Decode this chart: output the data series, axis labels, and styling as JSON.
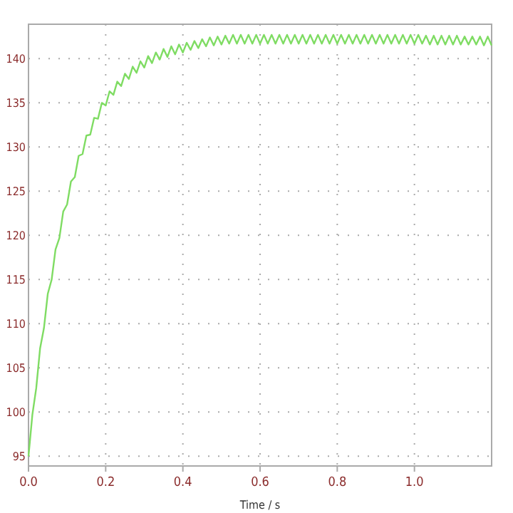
{
  "chart_data": {
    "type": "line",
    "xlabel": "Time / s",
    "xlim": [
      0,
      1.2
    ],
    "ylim": [
      93.9,
      143.9
    ],
    "xticks": [
      {
        "value": 0,
        "label": "0.0"
      },
      {
        "value": 0.2,
        "label": "0.2"
      },
      {
        "value": 0.4,
        "label": "0.4"
      },
      {
        "value": 0.6,
        "label": "0.6"
      },
      {
        "value": 0.8,
        "label": "0.8"
      },
      {
        "value": 1,
        "label": "1.0"
      }
    ],
    "yticks": [
      95,
      100,
      105,
      110,
      115,
      120,
      125,
      130,
      135,
      140
    ],
    "grid": true,
    "marker": "none",
    "line_style": "solid",
    "series": [
      {
        "color": "#7fdc63",
        "x": [
          0,
          0.01,
          0.02,
          0.03,
          0.04,
          0.05,
          0.06,
          0.07,
          0.08,
          0.09,
          0.1,
          0.11,
          0.12,
          0.13,
          0.14,
          0.15,
          0.16,
          0.17,
          0.18,
          0.19,
          0.2,
          0.21,
          0.22,
          0.23,
          0.24,
          0.25,
          0.26,
          0.27,
          0.28,
          0.29,
          0.3,
          0.31,
          0.32,
          0.33,
          0.34,
          0.35,
          0.36,
          0.37,
          0.38,
          0.39,
          0.4,
          0.41,
          0.42,
          0.43,
          0.44,
          0.45,
          0.46,
          0.47,
          0.48,
          0.49,
          0.5,
          0.51,
          0.52,
          0.53,
          0.54,
          0.55,
          0.56,
          0.57,
          0.58,
          0.59,
          0.6,
          0.61,
          0.62,
          0.63,
          0.64,
          0.65,
          0.66,
          0.67,
          0.68,
          0.69,
          0.7,
          0.71,
          0.72,
          0.73,
          0.74,
          0.75,
          0.76,
          0.77,
          0.78,
          0.79,
          0.8,
          0.81,
          0.82,
          0.83,
          0.84,
          0.85,
          0.86,
          0.87,
          0.88,
          0.89,
          0.9,
          0.91,
          0.92,
          0.93,
          0.94,
          0.95,
          0.96,
          0.97,
          0.98,
          0.99,
          1,
          1.01,
          1.02,
          1.03,
          1.04,
          1.05,
          1.06,
          1.07,
          1.08,
          1.09,
          1.1,
          1.11,
          1.12,
          1.13,
          1.14,
          1.15,
          1.16,
          1.17,
          1.18,
          1.19,
          1.2
        ],
        "values": [
          95,
          99.7,
          102.7,
          107.2,
          109.5,
          113.4,
          115,
          118.4,
          119.7,
          122.7,
          123.5,
          126.1,
          126.6,
          129,
          129.2,
          131.3,
          131.4,
          133.3,
          133.2,
          135,
          134.7,
          136.3,
          135.9,
          137.4,
          136.9,
          138.3,
          137.7,
          139.1,
          138.4,
          139.7,
          139,
          140.3,
          139.5,
          140.7,
          139.9,
          141.1,
          140.2,
          141.4,
          140.5,
          141.6,
          140.7,
          141.8,
          141,
          142,
          141.2,
          142.2,
          141.4,
          142.4,
          141.5,
          142.5,
          141.6,
          142.6,
          141.7,
          142.7,
          141.7,
          142.7,
          141.7,
          142.7,
          141.7,
          142.7,
          141.7,
          142.7,
          141.7,
          142.7,
          141.7,
          142.7,
          141.7,
          142.7,
          141.7,
          142.7,
          141.7,
          142.7,
          141.7,
          142.7,
          141.7,
          142.7,
          141.7,
          142.7,
          141.7,
          142.7,
          141.7,
          142.7,
          141.7,
          142.7,
          141.7,
          142.7,
          141.7,
          142.7,
          141.7,
          142.7,
          141.7,
          142.7,
          141.7,
          142.7,
          141.7,
          142.7,
          141.7,
          142.7,
          141.7,
          142.7,
          141.7,
          142.7,
          141.7,
          142.6,
          141.6,
          142.6,
          141.6,
          142.6,
          141.6,
          142.6,
          141.6,
          142.6,
          141.6,
          142.5,
          141.6,
          142.5,
          141.6,
          142.5,
          141.5,
          142.5,
          141.5
        ]
      }
    ]
  }
}
